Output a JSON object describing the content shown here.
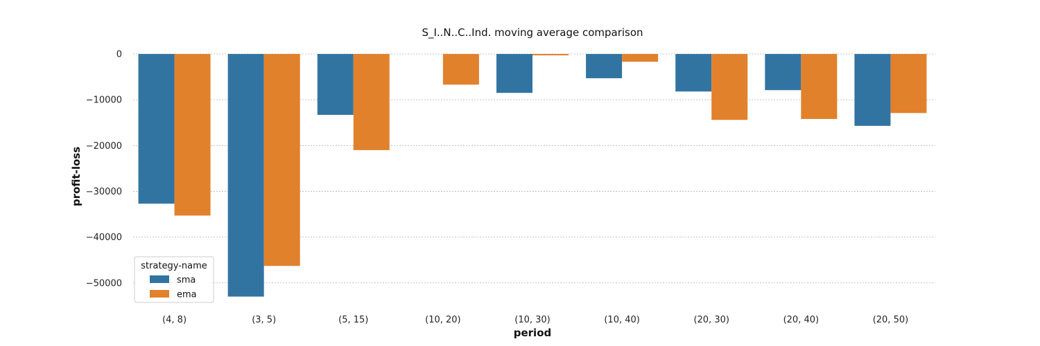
{
  "chart_data": {
    "type": "bar",
    "title": "S_I..N..C..Ind. moving average comparison",
    "xlabel": "period",
    "ylabel": "profit-loss",
    "categories": [
      "(4, 8)",
      "(3, 5)",
      "(5, 15)",
      "(10, 20)",
      "(10, 30)",
      "(10, 40)",
      "(20, 30)",
      "(20, 40)",
      "(20, 50)"
    ],
    "series": [
      {
        "name": "sma",
        "color": "#3274a1",
        "values": [
          -32700,
          -53000,
          -13300,
          null,
          -8500,
          -5300,
          -8200,
          -7900,
          -15700
        ]
      },
      {
        "name": "ema",
        "color": "#e1812c",
        "values": [
          -35300,
          -46300,
          -21000,
          -6700,
          -300,
          -1700,
          -14400,
          -14200,
          -12900
        ]
      }
    ],
    "yticks": [
      0,
      -10000,
      -20000,
      -30000,
      -40000,
      -50000
    ],
    "ytick_labels": [
      "0",
      "−10000",
      "−20000",
      "−30000",
      "−40000",
      "−50000"
    ],
    "ylim": [
      -55000,
      0
    ],
    "grid": true,
    "legend": {
      "title": "strategy-name",
      "placement": "lower-left"
    }
  }
}
